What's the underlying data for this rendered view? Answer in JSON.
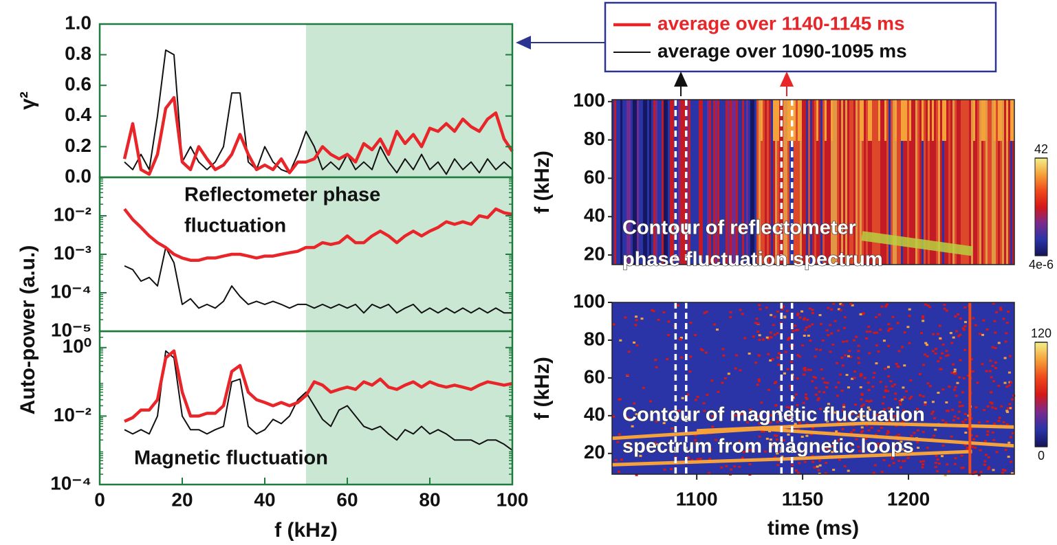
{
  "chart_data": [
    {
      "type": "line",
      "ylabel": "γ²",
      "x": [
        6,
        8,
        10,
        12,
        14,
        16,
        18,
        20,
        22,
        24,
        26,
        28,
        30,
        32,
        34,
        36,
        38,
        40,
        42,
        44,
        46,
        48,
        50,
        52,
        54,
        56,
        58,
        60,
        62,
        64,
        66,
        68,
        70,
        72,
        74,
        76,
        78,
        80,
        82,
        84,
        86,
        88,
        90,
        92,
        94,
        96,
        98,
        100
      ],
      "series": [
        {
          "name": "average over 1140-1145 ms",
          "color": "#e8262a",
          "width": 4.5,
          "values": [
            0.12,
            0.35,
            0.05,
            0.02,
            0.15,
            0.45,
            0.52,
            0.1,
            0.05,
            0.2,
            0.12,
            0.05,
            0.08,
            0.15,
            0.28,
            0.15,
            0.05,
            0.08,
            0.05,
            0.12,
            0.03,
            0.1,
            0.1,
            0.12,
            0.2,
            0.15,
            0.12,
            0.15,
            0.1,
            0.22,
            0.18,
            0.25,
            0.15,
            0.3,
            0.22,
            0.28,
            0.2,
            0.32,
            0.3,
            0.35,
            0.3,
            0.38,
            0.33,
            0.3,
            0.38,
            0.42,
            0.25,
            0.17
          ]
        },
        {
          "name": "average over 1090-1095 ms",
          "color": "#111111",
          "width": 2,
          "values": [
            0.1,
            0.05,
            0.15,
            0.05,
            0.4,
            0.83,
            0.8,
            0.1,
            0.2,
            0.1,
            0.05,
            0.1,
            0.2,
            0.55,
            0.55,
            0.1,
            0.05,
            0.2,
            0.1,
            0.05,
            0.03,
            0.15,
            0.3,
            0.2,
            0.05,
            0.1,
            0.05,
            0.15,
            0.05,
            0.1,
            0.05,
            0.2,
            0.1,
            0.03,
            0.12,
            0.05,
            0.15,
            0.05,
            0.1,
            0.02,
            0.12,
            0.05,
            0.1,
            0.03,
            0.12,
            0.05,
            0.1,
            0.05
          ]
        }
      ],
      "xlim": [
        0,
        100
      ],
      "ylim": [
        0,
        1
      ],
      "yticks": [
        {
          "value": 0,
          "label": "0.0"
        },
        0.2,
        0.4,
        0.6,
        0.8,
        {
          "value": 1,
          "label": "1.0"
        }
      ],
      "highlight_xlim": [
        50,
        100
      ],
      "highlight_color": "#c9e7d3",
      "frame_color": "#1f7a3e"
    },
    {
      "type": "line",
      "ylabel": "Auto-power (a.u.)",
      "yscale": "log",
      "annotation": [
        "Reflectometer phase",
        "fluctuation"
      ],
      "x": [
        6,
        8,
        10,
        12,
        14,
        16,
        18,
        20,
        22,
        24,
        26,
        28,
        30,
        32,
        34,
        36,
        38,
        40,
        42,
        44,
        46,
        48,
        50,
        52,
        54,
        56,
        58,
        60,
        62,
        64,
        66,
        68,
        70,
        72,
        74,
        76,
        78,
        80,
        82,
        84,
        86,
        88,
        90,
        92,
        94,
        96,
        98,
        100
      ],
      "series": [
        {
          "color": "#e8262a",
          "width": 4.5,
          "values": [
            0.015,
            0.008,
            0.005,
            0.003,
            0.002,
            0.0015,
            0.001,
            0.0008,
            0.0007,
            0.0007,
            0.0008,
            0.0008,
            0.0009,
            0.001,
            0.001,
            0.0009,
            0.0008,
            0.0009,
            0.0009,
            0.001,
            0.0011,
            0.0012,
            0.0015,
            0.0015,
            0.002,
            0.0018,
            0.002,
            0.003,
            0.002,
            0.002,
            0.003,
            0.004,
            0.003,
            0.002,
            0.003,
            0.004,
            0.003,
            0.004,
            0.005,
            0.007,
            0.006,
            0.007,
            0.006,
            0.01,
            0.009,
            0.015,
            0.012,
            0.011
          ]
        },
        {
          "color": "#111111",
          "width": 2,
          "values": [
            0.0005,
            0.0004,
            0.0002,
            0.00025,
            0.00015,
            0.0015,
            0.0006,
            5e-05,
            7e-05,
            4e-05,
            5e-05,
            4e-05,
            6e-05,
            0.00015,
            8e-05,
            5e-05,
            6e-05,
            5e-05,
            6e-05,
            5e-05,
            4e-05,
            5e-05,
            5e-05,
            4e-05,
            5e-05,
            4e-05,
            5e-05,
            4e-05,
            5e-05,
            3e-05,
            5e-05,
            4e-05,
            5e-05,
            3e-05,
            4e-05,
            5e-05,
            3e-05,
            4e-05,
            3e-05,
            4e-05,
            3e-05,
            4e-05,
            3e-05,
            4e-05,
            3e-05,
            4e-05,
            3e-05,
            3e-05
          ]
        }
      ],
      "xlim": [
        0,
        100
      ],
      "ylim": [
        1e-05,
        0.1
      ],
      "yticks": [
        {
          "value": 0.01,
          "label": "10⁻²"
        },
        {
          "value": 0.001,
          "label": "10⁻³"
        },
        {
          "value": 0.0001,
          "label": "10⁻⁴"
        },
        {
          "value": 1e-05,
          "label": "10⁻⁵"
        }
      ],
      "highlight_xlim": [
        50,
        100
      ],
      "highlight_color": "#c9e7d3",
      "frame_color": "#1f7a3e"
    },
    {
      "type": "line",
      "xlabel": "f (kHz)",
      "yscale": "log",
      "annotation": [
        "Magnetic fluctuation"
      ],
      "x": [
        6,
        8,
        10,
        12,
        14,
        16,
        18,
        20,
        22,
        24,
        26,
        28,
        30,
        32,
        34,
        36,
        38,
        40,
        42,
        44,
        46,
        48,
        50,
        52,
        54,
        56,
        58,
        60,
        62,
        64,
        66,
        68,
        70,
        72,
        74,
        76,
        78,
        80,
        82,
        84,
        86,
        88,
        90,
        92,
        94,
        96,
        98,
        100
      ],
      "series": [
        {
          "color": "#e8262a",
          "width": 4.5,
          "values": [
            0.007,
            0.009,
            0.015,
            0.015,
            0.03,
            0.5,
            0.8,
            0.05,
            0.01,
            0.01,
            0.012,
            0.012,
            0.02,
            0.2,
            0.3,
            0.05,
            0.03,
            0.025,
            0.02,
            0.025,
            0.02,
            0.025,
            0.04,
            0.1,
            0.08,
            0.05,
            0.06,
            0.07,
            0.06,
            0.1,
            0.08,
            0.12,
            0.07,
            0.06,
            0.08,
            0.1,
            0.07,
            0.1,
            0.08,
            0.07,
            0.08,
            0.07,
            0.06,
            0.08,
            0.1,
            0.09,
            0.08,
            0.09
          ]
        },
        {
          "color": "#111111",
          "width": 2,
          "values": [
            0.004,
            0.003,
            0.004,
            0.003,
            0.01,
            0.8,
            0.5,
            0.01,
            0.004,
            0.004,
            0.003,
            0.004,
            0.005,
            0.1,
            0.12,
            0.005,
            0.003,
            0.004,
            0.008,
            0.006,
            0.01,
            0.03,
            0.05,
            0.02,
            0.008,
            0.005,
            0.015,
            0.02,
            0.01,
            0.005,
            0.004,
            0.005,
            0.003,
            0.002,
            0.004,
            0.003,
            0.005,
            0.003,
            0.004,
            0.003,
            0.002,
            0.002,
            0.002,
            0.0015,
            0.002,
            0.002,
            0.0015,
            0.001
          ]
        }
      ],
      "xlim": [
        0,
        100
      ],
      "xticks": [
        0,
        20,
        40,
        60,
        80,
        100
      ],
      "ylim": [
        0.0001,
        3
      ],
      "yticks": [
        {
          "value": 1,
          "label": "10⁰"
        },
        {
          "value": 0.01,
          "label": "10⁻²"
        },
        {
          "value": 0.0001,
          "label": "10⁻⁴"
        }
      ],
      "highlight_xlim": [
        50,
        100
      ],
      "highlight_color": "#c9e7d3",
      "frame_color": "#1f7a3e"
    },
    {
      "type": "heatmap",
      "ylabel": "f (kHz)",
      "annotation": [
        "Contour of reflectometer",
        "phase fluctuation spectrum"
      ],
      "xlim": [
        1060,
        1250
      ],
      "ylim": [
        15,
        101
      ],
      "yticks": [
        20,
        40,
        60,
        80,
        100
      ],
      "markers": [
        1090,
        1095,
        1140,
        1145
      ],
      "colormap": [
        "#14145a",
        "#2a34a6",
        "#7a2a8c",
        "#d41818",
        "#f04a1c",
        "#f5a23a",
        "#f2f08a"
      ],
      "colorbar_ticks": [
        42,
        {
          "value": 4e-06,
          "label": "4e-6"
        }
      ]
    },
    {
      "type": "heatmap",
      "ylabel": "f (kHz)",
      "xlabel": "time (ms)",
      "annotation": [
        "Contour of magnetic fluctuation",
        "spectrum from magnetic loops"
      ],
      "xlim": [
        1060,
        1250
      ],
      "xticks": [
        1100,
        1150,
        1200
      ],
      "ylim": [
        9,
        100
      ],
      "yticks": [
        20,
        40,
        60,
        80,
        100
      ],
      "markers": [
        1090,
        1095,
        1140,
        1145
      ],
      "colormap": [
        "#14145a",
        "#2a34a6",
        "#7a2a8c",
        "#d41818",
        "#f04a1c",
        "#f5a23a",
        "#f2f08a"
      ],
      "colorbar_ticks": [
        120,
        0
      ]
    }
  ]
}
